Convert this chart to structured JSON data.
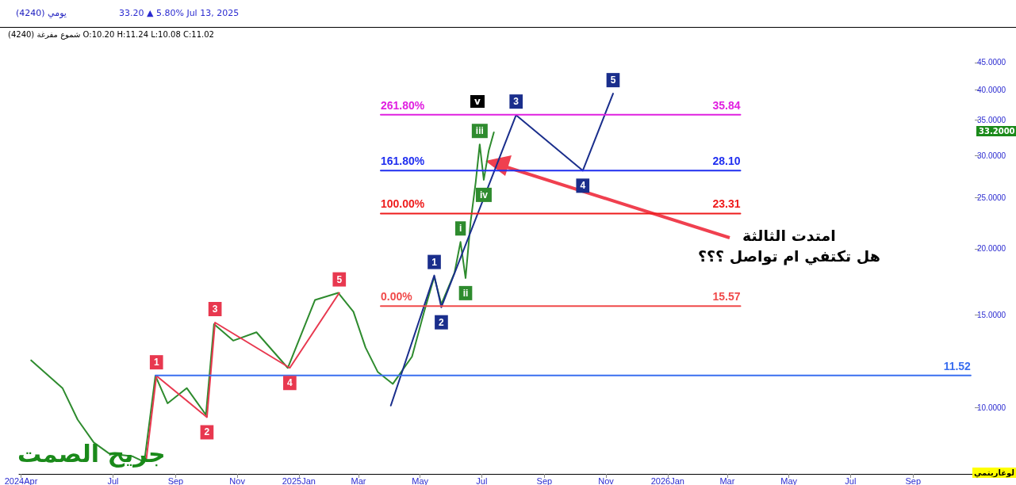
{
  "chart_data": {
    "type": "line",
    "title": "(4240)  يومي",
    "subtitle": "33.20 ▲ 5.80%  Jul 13, 2025",
    "log": true,
    "xlim": [
      "2024-03-30",
      "2026-11-01"
    ],
    "xticks": [
      {
        "value": "2024-04-01",
        "label": "2024Apr"
      },
      {
        "value": "2024-07-01",
        "label": "Jul"
      },
      {
        "value": "2024-09-01",
        "label": "Sep"
      },
      {
        "value": "2024-11-01",
        "label": "Nov"
      },
      {
        "value": "2025-01-01",
        "label": "2025Jan"
      },
      {
        "value": "2025-03-01",
        "label": "Mar"
      },
      {
        "value": "2025-05-01",
        "label": "May"
      },
      {
        "value": "2025-07-01",
        "label": "Jul"
      },
      {
        "value": "2025-09-01",
        "label": "Sep"
      },
      {
        "value": "2025-11-01",
        "label": "Nov"
      },
      {
        "value": "2026-01-01",
        "label": "2026Jan"
      },
      {
        "value": "2026-03-01",
        "label": "Mar"
      },
      {
        "value": "2026-05-01",
        "label": "May"
      },
      {
        "value": "2026-07-01",
        "label": "Jul"
      },
      {
        "value": "2026-09-01",
        "label": "Sep"
      }
    ],
    "ylim": [
      7.5,
      52
    ],
    "yticks": [
      {
        "value": 10,
        "label": "10.0000"
      },
      {
        "value": 15,
        "label": "15.0000"
      },
      {
        "value": 20,
        "label": "20.0000"
      },
      {
        "value": 25,
        "label": "25.0000"
      },
      {
        "value": 30,
        "label": "30.0000"
      },
      {
        "value": 35,
        "label": "35.0000"
      },
      {
        "value": 40,
        "label": "40.0000"
      },
      {
        "value": 45,
        "label": "45.0000"
      }
    ],
    "marker": "none",
    "series": [
      {
        "color": "#2e8b2e",
        "x": [
          "2024-04-11",
          "2024-05-12",
          "2024-05-27",
          "2024-06-12",
          "2024-06-27",
          "2024-07-20",
          "2024-08-01",
          "2024-08-12",
          "2024-08-24",
          "2024-09-12",
          "2024-10-01",
          "2024-10-09",
          "2024-10-28",
          "2024-11-20",
          "2024-12-21",
          "2025-01-17",
          "2025-02-09",
          "2025-02-24",
          "2025-03-08",
          "2025-03-20",
          "2025-04-04",
          "2025-04-23",
          "2025-05-05",
          "2025-05-15",
          "2025-05-22",
          "2025-06-04",
          "2025-06-10",
          "2025-06-15",
          "2025-06-20",
          "2025-06-25",
          "2025-06-29",
          "2025-07-03",
          "2025-07-08",
          "2025-07-13"
        ],
        "values": [
          12.3,
          10.9,
          9.5,
          8.6,
          8.2,
          8.1,
          7.9,
          11.5,
          10.2,
          10.9,
          9.7,
          14.4,
          13.4,
          13.9,
          11.9,
          16.0,
          16.5,
          15.2,
          13.0,
          11.7,
          11.1,
          12.5,
          15.2,
          17.7,
          15.7,
          18.0,
          20.6,
          17.6,
          22.5,
          26.7,
          31.5,
          27.0,
          30.7,
          33.2
        ]
      },
      {
        "color": "#e8384f",
        "x": [
          "2024-08-03",
          "2024-08-13",
          "2024-10-02",
          "2024-10-10",
          "2024-12-23",
          "2025-02-10"
        ],
        "values": [
          8.0,
          11.5,
          9.6,
          14.5,
          11.9,
          16.5
        ]
      },
      {
        "color": "#1a2e8c",
        "x": [
          "2025-04-02",
          "2025-05-15",
          "2025-05-22",
          "2025-08-04",
          "2025-10-09",
          "2025-11-08"
        ],
        "values": [
          10.1,
          17.8,
          15.5,
          35.8,
          28.1,
          39.3
        ]
      },
      {
        "name": "261.80%",
        "color": "#e020e0",
        "x": [
          "2025-03-23",
          "2026-03-14"
        ],
        "values": [
          35.84,
          35.84
        ],
        "value_labels": [
          null,
          "35.84"
        ]
      },
      {
        "name": "161.80%",
        "color": "#1f2ef0",
        "x": [
          "2025-03-23",
          "2026-03-14"
        ],
        "values": [
          28.1,
          28.1
        ],
        "value_labels": [
          null,
          "28.10"
        ]
      },
      {
        "name": "100.00%",
        "color": "#ee1c1c",
        "x": [
          "2025-03-23",
          "2026-03-14"
        ],
        "values": [
          23.31,
          23.31
        ],
        "value_labels": [
          null,
          "23.31"
        ]
      },
      {
        "name": "0.00%",
        "color": "#f04a4a",
        "x": [
          "2025-03-23",
          "2026-03-14"
        ],
        "values": [
          15.57,
          15.57
        ],
        "value_labels": [
          null,
          "15.57"
        ]
      },
      {
        "color": "#3a6ff0",
        "x": [
          "2024-08-12",
          "2026-10-28"
        ],
        "values": [
          11.52,
          11.52
        ],
        "value_labels": [
          null,
          "11.52"
        ]
      }
    ],
    "annotations": [
      "شموع مفرغة (4240)   O:10.20  H:11.24  L:10.08  C:11.02",
      "33.2000",
      "جريح الصمت",
      "لوغاريتمي",
      "امتدت الثالثة\nهل تكتفي ام تواصل ؟؟؟",
      "v",
      {
        "text": "1",
        "x": "2024-08-13",
        "y": 11.5
      },
      {
        "text": "2",
        "x": "2024-10-02",
        "y": 9.6
      },
      {
        "text": "3",
        "x": "2024-10-10",
        "y": 14.5
      },
      {
        "text": "4",
        "x": "2024-12-23",
        "y": 11.9
      },
      {
        "text": "5",
        "x": "2025-02-10",
        "y": 16.5
      },
      {
        "text": "1",
        "x": "2025-05-15",
        "y": 17.8
      },
      {
        "text": "2",
        "x": "2025-05-22",
        "y": 15.5
      },
      {
        "text": "3",
        "x": "2025-08-04",
        "y": 35.8
      },
      {
        "text": "4",
        "x": "2025-10-09",
        "y": 28.1
      },
      {
        "text": "5",
        "x": "2025-11-08",
        "y": 39.3
      },
      {
        "text": "i",
        "x": "2025-06-10",
        "y": 20.6
      },
      {
        "text": "ii",
        "x": "2025-06-15",
        "y": 17.6
      },
      {
        "text": "iii",
        "x": "2025-06-29",
        "y": 31.5
      },
      {
        "text": "iv",
        "x": "2025-07-03",
        "y": 27.0
      }
    ]
  }
}
